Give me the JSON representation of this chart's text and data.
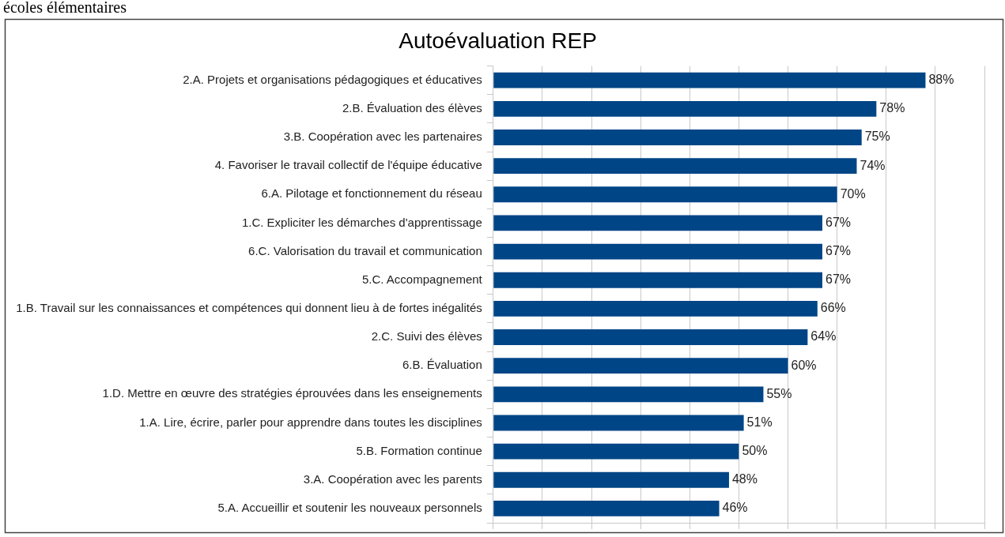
{
  "chart_data": {
    "type": "bar",
    "orientation": "horizontal",
    "title": "Autoévaluation REP",
    "annotations": [
      "écoles élémentaires"
    ],
    "categories": [
      "2.A. Projets et organisations pédagogiques et éducatives",
      "2.B. Évaluation des élèves",
      "3.B. Coopération avec les partenaires",
      "4. Favoriser le travail collectif de l'équipe éducative",
      "6.A. Pilotage et fonctionnement du réseau",
      "1.C. Expliciter les démarches d'apprentissage",
      "6.C. Valorisation du travail et communication",
      "5.C. Accompagnement",
      "1.B. Travail sur les connaissances et compétences qui donnent lieu à de fortes inégalités",
      "2.C. Suivi des élèves",
      "6.B. Évaluation",
      "1.D. Mettre en œuvre des stratégies éprouvées dans les enseignements",
      "1.A. Lire, écrire, parler pour apprendre dans toutes les disciplines",
      "5.B. Formation continue",
      "3.A. Coopération avec les parents",
      "5.A. Accueillir et soutenir les nouveaux personnels"
    ],
    "values": [
      88,
      78,
      75,
      74,
      70,
      67,
      67,
      67,
      66,
      64,
      60,
      55,
      51,
      50,
      48,
      46
    ],
    "value_labels": [
      "88%",
      "78%",
      "75%",
      "74%",
      "70%",
      "67%",
      "67%",
      "67%",
      "66%",
      "64%",
      "60%",
      "55%",
      "51%",
      "50%",
      "48%",
      "46%"
    ],
    "color": "#004586",
    "xlim": [
      0,
      100
    ],
    "xticks": [
      {
        "value": 0,
        "label": null
      },
      {
        "value": 10,
        "label": null
      },
      {
        "value": 20,
        "label": null
      },
      {
        "value": 30,
        "label": null
      },
      {
        "value": 40,
        "label": null
      },
      {
        "value": 50,
        "label": null
      },
      {
        "value": 60,
        "label": null
      },
      {
        "value": 70,
        "label": null
      },
      {
        "value": 80,
        "label": null
      },
      {
        "value": 90,
        "label": null
      },
      {
        "value": 100,
        "label": null
      }
    ],
    "grid": "x",
    "tick_labels": "y",
    "legend": false
  }
}
